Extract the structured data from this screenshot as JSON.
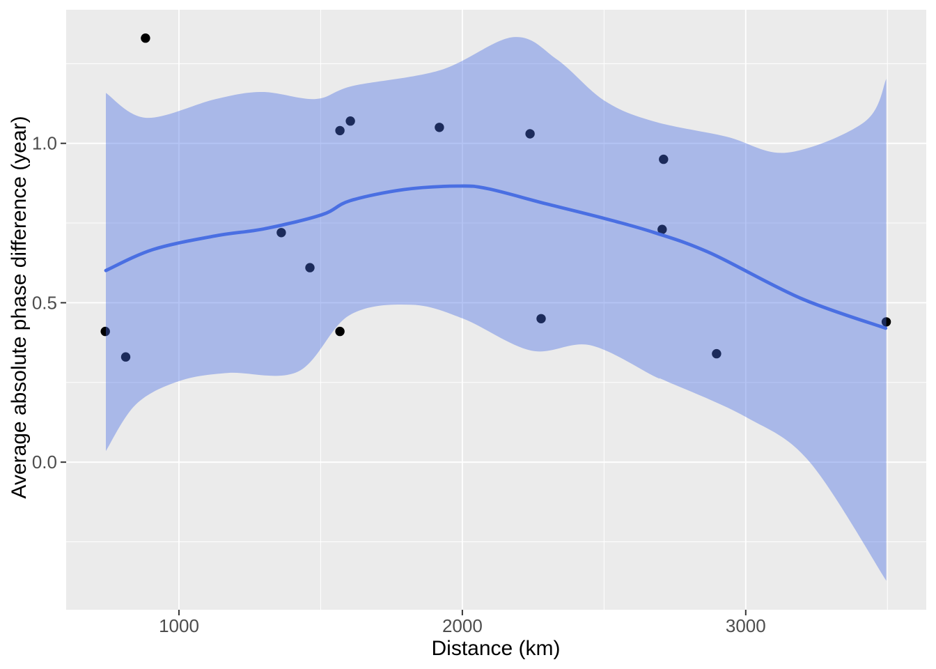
{
  "figure": {
    "background": "#FFFFFF",
    "panel_bg": "#EBEBEB",
    "grid_color": "#FFFFFF",
    "point_color": "#000000",
    "ribbon_color": "#466BE3",
    "ribbon_opacity": 0.4,
    "line_color": "#4A6FE2",
    "axis_text_color": "#4D4D4D",
    "axis_title_color": "#000000",
    "tick_color": "#333333"
  },
  "chart_data": {
    "type": "scatter",
    "title": "",
    "xlabel": "Distance (km)",
    "ylabel": "Average absolute phase difference (year)",
    "xlim": [
      602,
      3637
    ],
    "ylim": [
      -0.463,
      1.419
    ],
    "grid": true,
    "legend": "none",
    "x_ticks": [
      1000,
      2000,
      3000
    ],
    "x_tick_labels": [
      "1000",
      "2000",
      "3000"
    ],
    "y_ticks": [
      0.0,
      0.5,
      1.0
    ],
    "y_tick_labels": [
      "0.0",
      "0.5",
      "1.0"
    ],
    "x_minor_ticks": [
      1500,
      2500,
      3500
    ],
    "y_minor_ticks": [
      -0.25,
      0.25,
      0.75,
      1.25
    ],
    "points": [
      {
        "x": 740,
        "y": 0.41
      },
      {
        "x": 812,
        "y": 0.33
      },
      {
        "x": 882,
        "y": 1.33
      },
      {
        "x": 1361,
        "y": 0.72
      },
      {
        "x": 1462,
        "y": 0.61
      },
      {
        "x": 1568,
        "y": 0.41
      },
      {
        "x": 1568,
        "y": 1.04
      },
      {
        "x": 1605,
        "y": 1.07
      },
      {
        "x": 1919,
        "y": 1.05
      },
      {
        "x": 2239,
        "y": 1.03
      },
      {
        "x": 2278,
        "y": 0.45
      },
      {
        "x": 2705,
        "y": 0.73
      },
      {
        "x": 2710,
        "y": 0.95
      },
      {
        "x": 2897,
        "y": 0.34
      },
      {
        "x": 3496,
        "y": 0.44
      }
    ],
    "smooth_line": [
      {
        "x": 742,
        "y": 0.601
      },
      {
        "x": 909,
        "y": 0.667
      },
      {
        "x": 1130,
        "y": 0.71
      },
      {
        "x": 1302,
        "y": 0.732
      },
      {
        "x": 1504,
        "y": 0.776
      },
      {
        "x": 1604,
        "y": 0.82
      },
      {
        "x": 1794,
        "y": 0.855
      },
      {
        "x": 1983,
        "y": 0.866
      },
      {
        "x": 2089,
        "y": 0.858
      },
      {
        "x": 2293,
        "y": 0.811
      },
      {
        "x": 2499,
        "y": 0.765
      },
      {
        "x": 2678,
        "y": 0.72
      },
      {
        "x": 2875,
        "y": 0.656
      },
      {
        "x": 3194,
        "y": 0.514
      },
      {
        "x": 3494,
        "y": 0.42
      }
    ],
    "ribbon_upper": [
      {
        "x": 742,
        "y": 1.158
      },
      {
        "x": 885,
        "y": 1.08
      },
      {
        "x": 1130,
        "y": 1.139
      },
      {
        "x": 1295,
        "y": 1.161
      },
      {
        "x": 1482,
        "y": 1.139
      },
      {
        "x": 1614,
        "y": 1.18
      },
      {
        "x": 1924,
        "y": 1.23
      },
      {
        "x": 2180,
        "y": 1.333
      },
      {
        "x": 2334,
        "y": 1.263
      },
      {
        "x": 2501,
        "y": 1.134
      },
      {
        "x": 2675,
        "y": 1.069
      },
      {
        "x": 2932,
        "y": 1.021
      },
      {
        "x": 3146,
        "y": 0.971
      },
      {
        "x": 3419,
        "y": 1.067
      },
      {
        "x": 3496,
        "y": 1.202
      }
    ],
    "ribbon_lower": [
      {
        "x": 742,
        "y": 0.035
      },
      {
        "x": 848,
        "y": 0.181
      },
      {
        "x": 1000,
        "y": 0.254
      },
      {
        "x": 1174,
        "y": 0.28
      },
      {
        "x": 1420,
        "y": 0.284
      },
      {
        "x": 1600,
        "y": 0.46
      },
      {
        "x": 1818,
        "y": 0.494
      },
      {
        "x": 2003,
        "y": 0.45
      },
      {
        "x": 2243,
        "y": 0.35
      },
      {
        "x": 2450,
        "y": 0.367
      },
      {
        "x": 2678,
        "y": 0.269
      },
      {
        "x": 2720,
        "y": 0.254
      },
      {
        "x": 3000,
        "y": 0.142
      },
      {
        "x": 3226,
        "y": 0.0
      },
      {
        "x": 3496,
        "y": -0.372
      }
    ]
  }
}
